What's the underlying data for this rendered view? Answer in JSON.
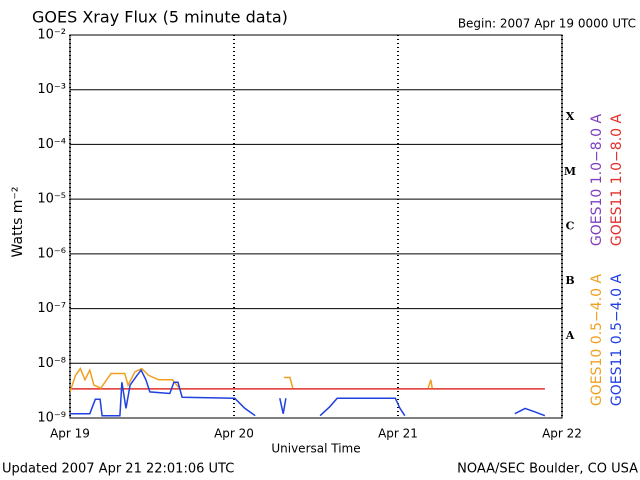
{
  "chart_data": {
    "type": "line",
    "title": "GOES Xray Flux (5 minute data)",
    "subtitle": "Begin:  2007 Apr 19 0000 UTC",
    "x_label": "Universal Time",
    "y_label": "Watts m⁻²",
    "log_y": true,
    "ylim": [
      1e-09,
      0.01
    ],
    "yticks": [
      {
        "value": 1e-09,
        "label": "10⁻⁹"
      },
      {
        "value": 1e-08,
        "label": "10⁻⁸"
      },
      {
        "value": 1e-07,
        "label": "10⁻⁷"
      },
      {
        "value": 1e-06,
        "label": "10⁻⁶"
      },
      {
        "value": 1e-05,
        "label": "10⁻⁵"
      },
      {
        "value": 0.0001,
        "label": "10⁻⁴"
      },
      {
        "value": 0.001,
        "label": "10⁻³"
      },
      {
        "value": 0.01,
        "label": "10⁻²"
      }
    ],
    "xlim": [
      0,
      72
    ],
    "xticks": [
      {
        "value": 0,
        "label": "Apr 19"
      },
      {
        "value": 24,
        "label": "Apr 20"
      },
      {
        "value": 48,
        "label": "Apr 21"
      },
      {
        "value": 72,
        "label": "Apr 22"
      }
    ],
    "flare_classes": [
      "A",
      "B",
      "C",
      "M",
      "X"
    ],
    "series": [
      {
        "name": "GOES10 1.0−8.0 A",
        "color": "#7f3fbf",
        "x": [],
        "values": []
      },
      {
        "name": "GOES11 1.0−8.0 A",
        "color": "#e0302a",
        "x": [
          0,
          12,
          24,
          36,
          48,
          60,
          69.5
        ],
        "values": [
          3.4e-09,
          3.4e-09,
          3.4e-09,
          3.4e-09,
          3.4e-09,
          3.4e-09,
          3.4e-09
        ]
      },
      {
        "name": "GOES10 0.5−4.0 A",
        "color": "#f0a020",
        "x": [
          0,
          0.8,
          1.5,
          2.2,
          2.9,
          3.5,
          4.5,
          6.0,
          8.0,
          8.5,
          9.5,
          10.5,
          11.5,
          13,
          15,
          16,
          20,
          31.3,
          32.2,
          32.6,
          40,
          52.4,
          52.8,
          53.0
        ],
        "values": [
          3e-09,
          6e-09,
          8e-09,
          5e-09,
          7.5e-09,
          4e-09,
          3.5e-09,
          6.5e-09,
          6.5e-09,
          4e-09,
          7e-09,
          8e-09,
          6e-09,
          5e-09,
          5e-09,
          3.5e-09,
          null,
          5.5e-09,
          5.5e-09,
          3.5e-09,
          null,
          3.5e-09,
          5e-09,
          3.5e-09
        ]
      },
      {
        "name": "GOES11 0.5−4.0 A",
        "color": "#2040e0",
        "x": [
          0,
          2.9,
          3.7,
          4.4,
          4.7,
          7.3,
          7.6,
          8.2,
          8.8,
          9.8,
          10.4,
          11.1,
          11.7,
          14.6,
          15.2,
          15.8,
          16.4,
          24.1,
          25.6,
          27.1,
          29,
          30.7,
          31.2,
          31.6,
          34,
          36.6,
          38.0,
          39.1,
          47.6,
          48.3,
          49.0,
          57,
          65.1,
          66.6,
          68.0,
          69.5
        ],
        "values": [
          1.2e-09,
          1.2e-09,
          2.2e-09,
          2.2e-09,
          1.1e-09,
          1.1e-09,
          4.5e-09,
          1.5e-09,
          4e-09,
          6e-09,
          7.5e-09,
          5e-09,
          3e-09,
          2.8e-09,
          4.5e-09,
          4.5e-09,
          2.4e-09,
          2.3e-09,
          1.5e-09,
          1.1e-09,
          null,
          2.3e-09,
          1.2e-09,
          2.3e-09,
          null,
          1.1e-09,
          1.6e-09,
          2.3e-09,
          2.3e-09,
          1.5e-09,
          1.1e-09,
          null,
          1.2e-09,
          1.5e-09,
          1.3e-09,
          1.1e-09
        ]
      }
    ],
    "updated": "Updated 2007 Apr 21 22:01:06 UTC",
    "source": "NOAA/SEC Boulder, CO USA"
  }
}
